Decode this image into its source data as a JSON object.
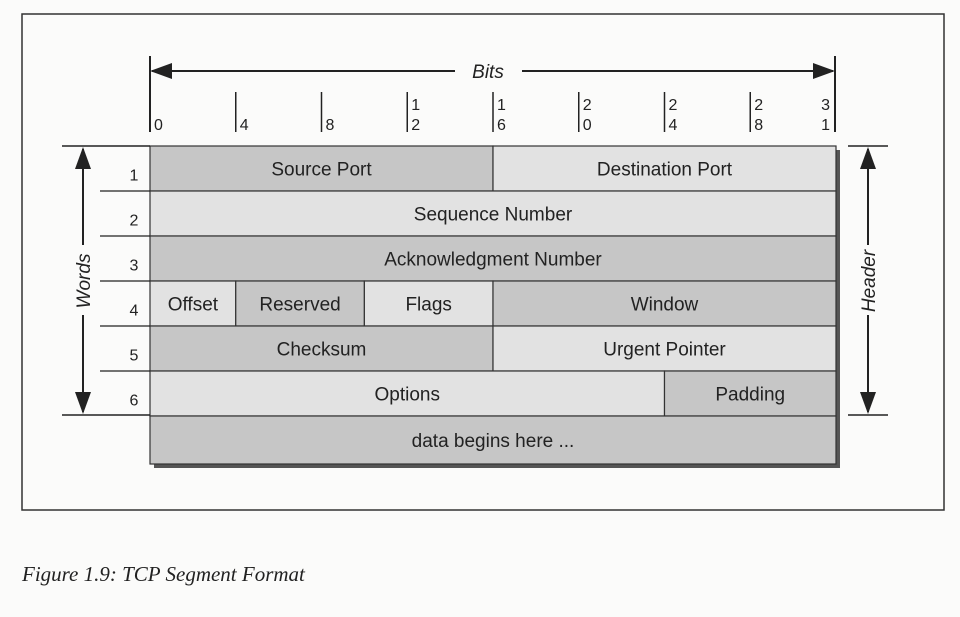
{
  "bits_label": "Bits",
  "words_label": "Words",
  "header_label": "Header",
  "bit_ticks": [
    {
      "bit": 0,
      "label": [
        "",
        "0"
      ]
    },
    {
      "bit": 4,
      "label": [
        "",
        "4"
      ]
    },
    {
      "bit": 8,
      "label": [
        "",
        "8"
      ]
    },
    {
      "bit": 12,
      "label": [
        "1",
        "2"
      ]
    },
    {
      "bit": 16,
      "label": [
        "1",
        "6"
      ]
    },
    {
      "bit": 20,
      "label": [
        "2",
        "0"
      ]
    },
    {
      "bit": 24,
      "label": [
        "2",
        "4"
      ]
    },
    {
      "bit": 28,
      "label": [
        "2",
        "8"
      ]
    },
    {
      "bit": 31,
      "label": [
        "3",
        "1"
      ]
    }
  ],
  "rows": [
    {
      "word": "1",
      "fields": [
        {
          "name": "Source Port",
          "start": 0,
          "end": 16,
          "shade": "dark"
        },
        {
          "name": "Destination Port",
          "start": 16,
          "end": 32,
          "shade": "light"
        }
      ]
    },
    {
      "word": "2",
      "fields": [
        {
          "name": "Sequence Number",
          "start": 0,
          "end": 32,
          "shade": "light"
        }
      ]
    },
    {
      "word": "3",
      "fields": [
        {
          "name": "Acknowledgment Number",
          "start": 0,
          "end": 32,
          "shade": "dark"
        }
      ]
    },
    {
      "word": "4",
      "fields": [
        {
          "name": "Offset",
          "start": 0,
          "end": 4,
          "shade": "light"
        },
        {
          "name": "Reserved",
          "start": 4,
          "end": 10,
          "shade": "dark"
        },
        {
          "name": "Flags",
          "start": 10,
          "end": 16,
          "shade": "light"
        },
        {
          "name": "Window",
          "start": 16,
          "end": 32,
          "shade": "dark"
        }
      ]
    },
    {
      "word": "5",
      "fields": [
        {
          "name": "Checksum",
          "start": 0,
          "end": 16,
          "shade": "dark"
        },
        {
          "name": "Urgent Pointer",
          "start": 16,
          "end": 32,
          "shade": "light"
        }
      ]
    },
    {
      "word": "6",
      "fields": [
        {
          "name": "Options",
          "start": 0,
          "end": 24,
          "shade": "light"
        },
        {
          "name": "Padding",
          "start": 24,
          "end": 32,
          "shade": "dark"
        }
      ]
    },
    {
      "word": "",
      "fields": [
        {
          "name": "data begins here ...",
          "start": 0,
          "end": 32,
          "shade": "dark"
        }
      ]
    }
  ],
  "colors": {
    "dark": "#c6c6c6",
    "light": "#e2e2e2",
    "ink": "#222222"
  },
  "caption": "Figure 1.9:  TCP Segment Format"
}
